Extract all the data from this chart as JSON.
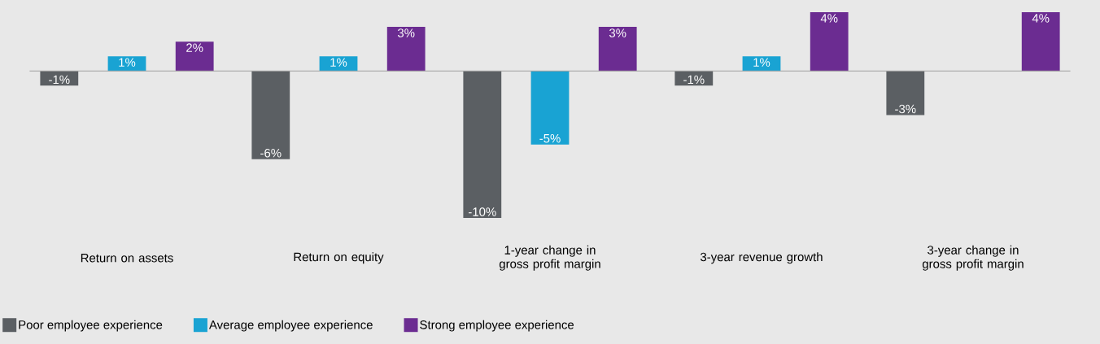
{
  "chart_data": {
    "type": "bar",
    "categories": [
      "Return on assets",
      "Return on equity",
      "1-year change in gross profit margin",
      "3-year revenue growth",
      "3-year change in gross profit margin"
    ],
    "series": [
      {
        "name": "Poor employee experience",
        "color": "#5b5f63",
        "values": [
          -1,
          -6,
          -10,
          -1,
          -3
        ],
        "value_labels": [
          "-1%",
          "-6%",
          "-10%",
          "-1%",
          "-3%"
        ]
      },
      {
        "name": "Average employee experience",
        "color": "#19a3d3",
        "values": [
          1,
          1,
          -5,
          1,
          0
        ],
        "value_labels": [
          "1%",
          "1%",
          "-5%",
          "1%",
          null
        ]
      },
      {
        "name": "Strong employee experience",
        "color": "#6b2c91",
        "values": [
          2,
          3,
          3,
          4,
          4
        ],
        "value_labels": [
          "2%",
          "3%",
          "3%",
          "4%",
          "4%"
        ]
      }
    ],
    "ref_lines": [
      {
        "axis": "y",
        "value": 0,
        "color": "#a0a0a0"
      }
    ],
    "legend": "bottom left"
  }
}
